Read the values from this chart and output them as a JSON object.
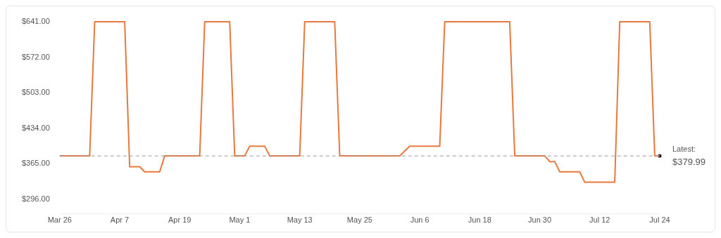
{
  "chart_data": {
    "type": "line",
    "x": [
      "--03-26",
      "--04-01",
      "--04-02",
      "--04-08",
      "--04-09",
      "--04-11",
      "--04-12",
      "--04-15",
      "--04-16",
      "--04-23",
      "--04-24",
      "--04-29",
      "--04-30",
      "--05-02",
      "--05-03",
      "--05-06",
      "--05-07",
      "--05-13",
      "--05-14",
      "--05-20",
      "--05-21",
      "--06-02",
      "--06-04",
      "--06-10",
      "--06-11",
      "--06-24",
      "--06-25",
      "--07-01",
      "--07-02",
      "--07-03",
      "--07-04",
      "--07-08",
      "--07-09",
      "--07-15",
      "--07-16",
      "--07-22",
      "--07-23",
      "--07-24"
    ],
    "series": [
      {
        "color": "#e8783c",
        "values": [
          379.99,
          379.99,
          641,
          641,
          359,
          359,
          349,
          349,
          379.99,
          379.99,
          641,
          641,
          379.99,
          379.99,
          399,
          399,
          379.99,
          379.99,
          641,
          641,
          379.99,
          379.99,
          399,
          399,
          641,
          641,
          379.99,
          379.99,
          369,
          369,
          349,
          349,
          329,
          329,
          641,
          641,
          379.99,
          379.99
        ]
      },
      {
        "type": "scatter",
        "marker": "square",
        "color": "#000000",
        "x": [
          "--07-24"
        ],
        "values": [
          379.99
        ]
      }
    ],
    "xlim": [
      "--03-26",
      "--07-24"
    ],
    "xticks": [
      {
        "value": "--03-26",
        "label": "Mar 26"
      },
      {
        "value": "--04-07",
        "label": "Apr 7"
      },
      {
        "value": "--04-19",
        "label": "Apr 19"
      },
      {
        "value": "--05-01",
        "label": "May 1"
      },
      {
        "value": "--05-13",
        "label": "May 13"
      },
      {
        "value": "--05-25",
        "label": "May 25"
      },
      {
        "value": "--06-06",
        "label": "Jun 6"
      },
      {
        "value": "--06-18",
        "label": "Jun 18"
      },
      {
        "value": "--06-30",
        "label": "Jun 30"
      },
      {
        "value": "--07-12",
        "label": "Jul 12"
      },
      {
        "value": "--07-24",
        "label": "Jul 24"
      }
    ],
    "ylim": [
      267,
      641
    ],
    "yticks": [
      {
        "value": 296,
        "label": "$296.00"
      },
      {
        "value": 365,
        "label": "$365.00"
      },
      {
        "value": 434,
        "label": "$434.00"
      },
      {
        "value": 503,
        "label": "$503.00"
      },
      {
        "value": 572,
        "label": "$572.00"
      },
      {
        "value": 641,
        "label": "$641.00"
      }
    ],
    "ref_lines": [
      {
        "axis": "y",
        "value": 379.99,
        "color": "#999999",
        "line_style": "dashed"
      }
    ],
    "annotations": [
      {
        "text": "Latest:",
        "x": "--07-24",
        "y": 379.99
      },
      {
        "text": "$379.99",
        "x": "--07-24",
        "y": 379.99
      }
    ],
    "marker": "none",
    "line_style": "solid",
    "legend": false,
    "grid": false
  }
}
